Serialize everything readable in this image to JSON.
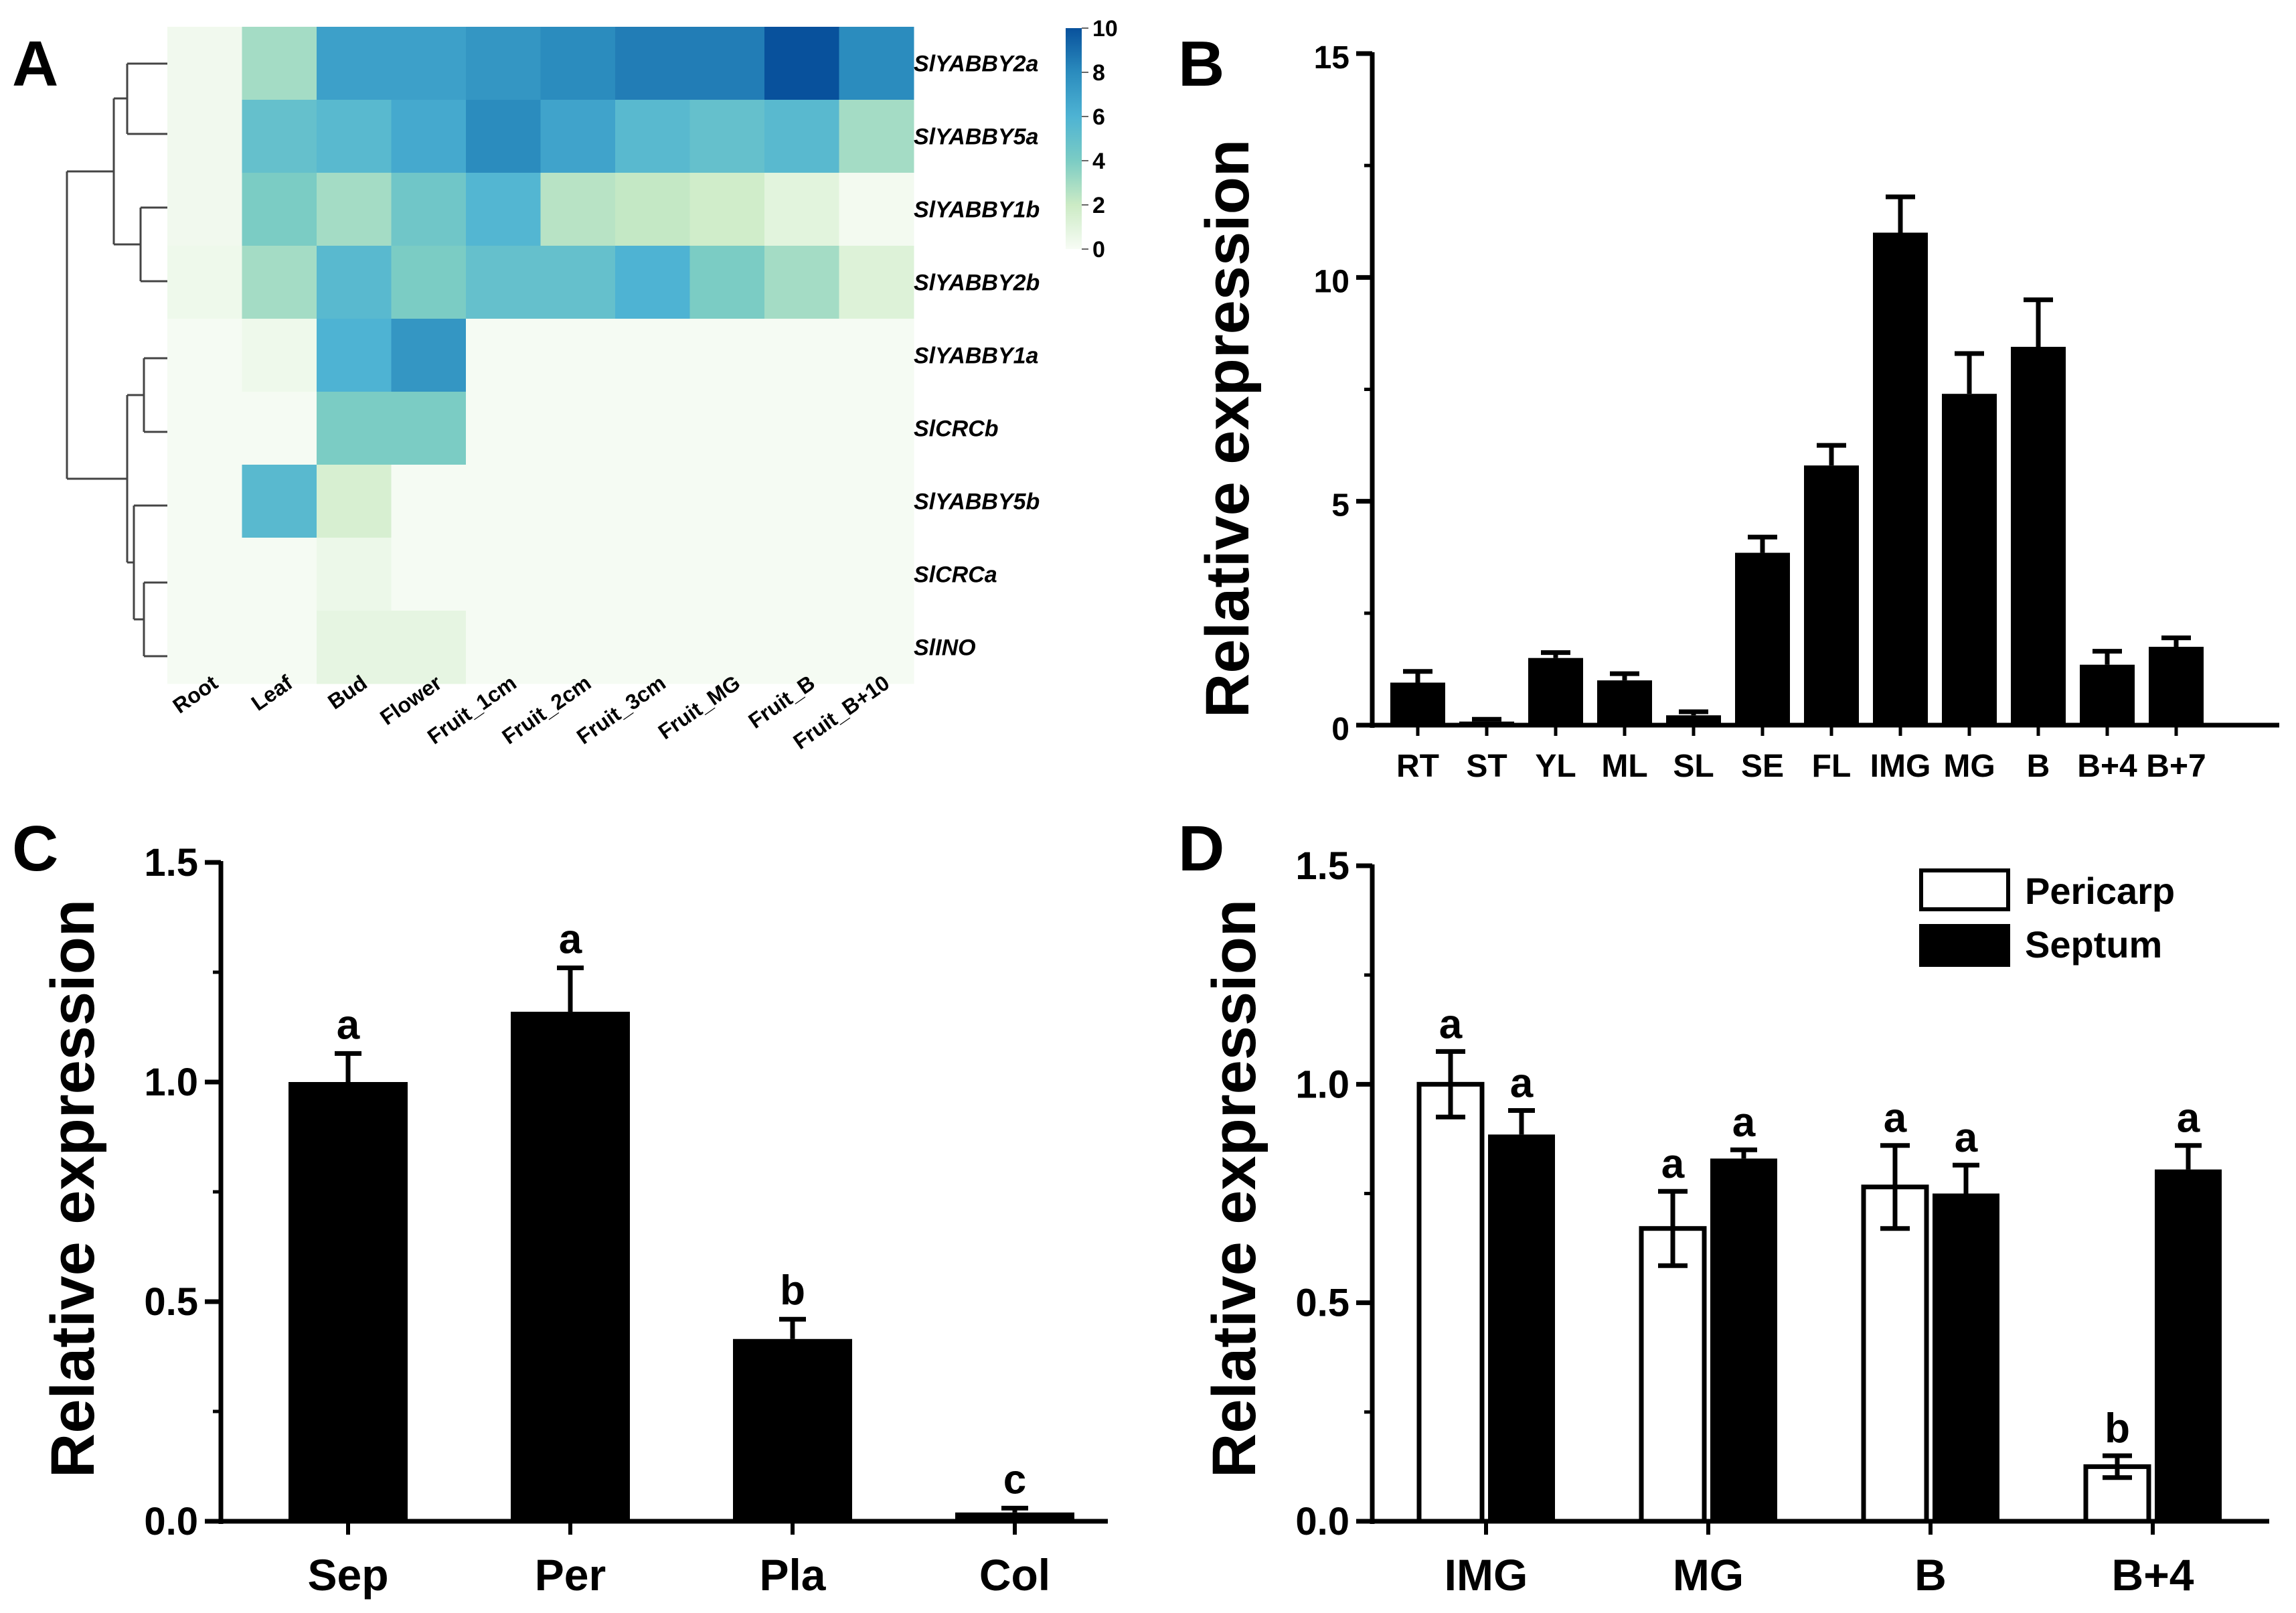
{
  "chart_data": [
    {
      "panel": "A",
      "type": "heatmap",
      "rows": [
        "SlYABBY2a",
        "SlYABBY5a",
        "SlYABBY1b",
        "SlYABBY2b",
        "SlYABBY1a",
        "SlCRCb",
        "SlYABBY5b",
        "SlCRCa",
        "SlINO"
      ],
      "columns": [
        "Root",
        "Leaf",
        "Bud",
        "Flower",
        "Fruit_1cm",
        "Fruit_2cm",
        "Fruit_3cm",
        "Fruit_MG",
        "Fruit_B",
        "Fruit_B+10"
      ],
      "values": [
        [
          0.3,
          3.0,
          7.0,
          7.0,
          7.5,
          8.0,
          8.5,
          8.5,
          10.0,
          8.0
        ],
        [
          0.3,
          5.0,
          5.5,
          6.5,
          8.0,
          6.8,
          5.5,
          5.0,
          5.5,
          3.0
        ],
        [
          0.3,
          4.0,
          3.0,
          4.5,
          5.8,
          2.5,
          2.2,
          1.8,
          1.0,
          0.2
        ],
        [
          0.4,
          3.0,
          5.5,
          4.0,
          5.0,
          5.0,
          6.0,
          4.0,
          3.0,
          1.2
        ],
        [
          0.1,
          0.4,
          6.0,
          7.5,
          0.1,
          0.1,
          0.1,
          0.1,
          0.1,
          0.1
        ],
        [
          0.1,
          0.1,
          4.0,
          4.0,
          0.1,
          0.1,
          0.1,
          0.1,
          0.1,
          0.1
        ],
        [
          0.1,
          5.5,
          1.5,
          0.1,
          0.1,
          0.1,
          0.1,
          0.1,
          0.1,
          0.1
        ],
        [
          0.1,
          0.1,
          0.5,
          0.1,
          0.1,
          0.1,
          0.1,
          0.1,
          0.1,
          0.1
        ],
        [
          0.1,
          0.1,
          0.8,
          0.8,
          0.1,
          0.1,
          0.1,
          0.1,
          0.1,
          0.1
        ]
      ],
      "colorbar": {
        "ticks": [
          "10",
          "8",
          "6",
          "4",
          "2",
          "0"
        ],
        "range": [
          0,
          10
        ]
      }
    },
    {
      "panel": "B",
      "type": "bar",
      "categories": [
        "RT",
        "ST",
        "YL",
        "ML",
        "SL",
        "SE",
        "FL",
        "IMG",
        "MG",
        "B",
        "B+4",
        "B+7"
      ],
      "values": [
        0.95,
        0.08,
        1.5,
        1.0,
        0.22,
        3.85,
        5.8,
        11.0,
        7.4,
        8.45,
        1.35,
        1.75
      ],
      "errors": [
        0.25,
        0.05,
        0.12,
        0.15,
        0.08,
        0.35,
        0.45,
        0.8,
        0.9,
        1.05,
        0.3,
        0.2
      ],
      "ylabel": "Relative expression",
      "ylim": [
        0,
        15
      ],
      "yticks": [
        "0",
        "5",
        "10",
        "15"
      ]
    },
    {
      "panel": "C",
      "type": "bar",
      "categories": [
        "Sep",
        "Per",
        "Pla",
        "Col"
      ],
      "values": [
        1.0,
        1.16,
        0.415,
        0.02
      ],
      "errors": [
        0.065,
        0.1,
        0.045,
        0.01
      ],
      "significance": [
        "a",
        "a",
        "b",
        "c"
      ],
      "ylabel": "Relative expression",
      "ylim": [
        0,
        1.5
      ],
      "yticks": [
        "0.0",
        "0.5",
        "1.0",
        "1.5"
      ]
    },
    {
      "panel": "D",
      "type": "bar",
      "categories": [
        "IMG",
        "MG",
        "B",
        "B+4"
      ],
      "series": [
        {
          "name": "Pericarp",
          "fill": "#ffffff",
          "values": [
            1.0,
            0.67,
            0.765,
            0.125
          ],
          "errors": [
            0.075,
            0.085,
            0.095,
            0.025
          ],
          "significance": [
            "a",
            "a",
            "a",
            "b"
          ]
        },
        {
          "name": "Septum",
          "fill": "#000000",
          "values": [
            0.885,
            0.83,
            0.75,
            0.805
          ],
          "errors": [
            0.055,
            0.02,
            0.065,
            0.055
          ],
          "significance": [
            "a",
            "a",
            "a",
            "a"
          ]
        }
      ],
      "ylabel": "Relative expression",
      "ylim": [
        0,
        1.5
      ],
      "yticks": [
        "0.0",
        "0.5",
        "1.0",
        "1.5"
      ]
    }
  ],
  "panel_labels": {
    "a": "A",
    "b": "B",
    "c": "C",
    "d": "D"
  },
  "legend": {
    "pericarp": "Pericarp",
    "septum": "Septum"
  },
  "colors": {
    "bar": "#000000",
    "heat_low": "#f5fbf2",
    "heat_mid": "#5bbcc9",
    "heat_high": "#08519c"
  }
}
